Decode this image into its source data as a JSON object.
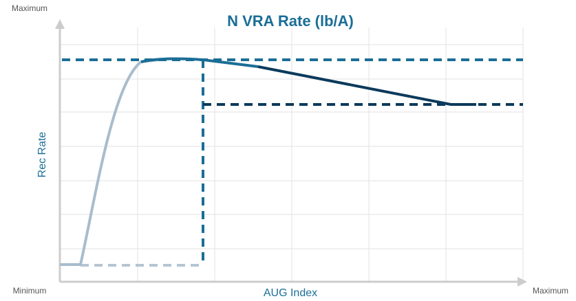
{
  "chart_data": {
    "type": "line",
    "title": "N VRA Rate (lb/A)",
    "xlabel": "AUG Index",
    "ylabel": "Rec Rate",
    "axis_end_labels": {
      "y_max": "Maximum",
      "origin": "Minimum",
      "x_max": "Maximum"
    }
  }
}
